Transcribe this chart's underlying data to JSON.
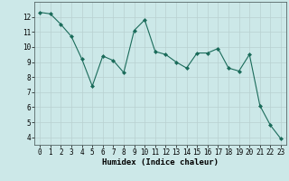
{
  "x": [
    0,
    1,
    2,
    3,
    4,
    5,
    6,
    7,
    8,
    9,
    10,
    11,
    12,
    13,
    14,
    15,
    16,
    17,
    18,
    19,
    20,
    21,
    22,
    23
  ],
  "y": [
    12.3,
    12.2,
    11.5,
    10.7,
    9.2,
    7.4,
    9.4,
    9.1,
    8.3,
    11.1,
    11.8,
    9.7,
    9.5,
    9.0,
    8.6,
    9.6,
    9.6,
    9.9,
    8.6,
    8.4,
    9.5,
    6.1,
    4.8,
    3.9
  ],
  "xlabel": "Humidex (Indice chaleur)",
  "xlim": [
    -0.5,
    23.5
  ],
  "ylim": [
    3.5,
    13.0
  ],
  "yticks": [
    4,
    5,
    6,
    7,
    8,
    9,
    10,
    11,
    12
  ],
  "xticks": [
    0,
    1,
    2,
    3,
    4,
    5,
    6,
    7,
    8,
    9,
    10,
    11,
    12,
    13,
    14,
    15,
    16,
    17,
    18,
    19,
    20,
    21,
    22,
    23
  ],
  "line_color": "#1a6b5a",
  "marker": "D",
  "marker_size": 2,
  "bg_color": "#cce8e8",
  "grid_color": "#b8d0d0",
  "tick_label_fontsize": 5.5,
  "xlabel_fontsize": 6.5
}
